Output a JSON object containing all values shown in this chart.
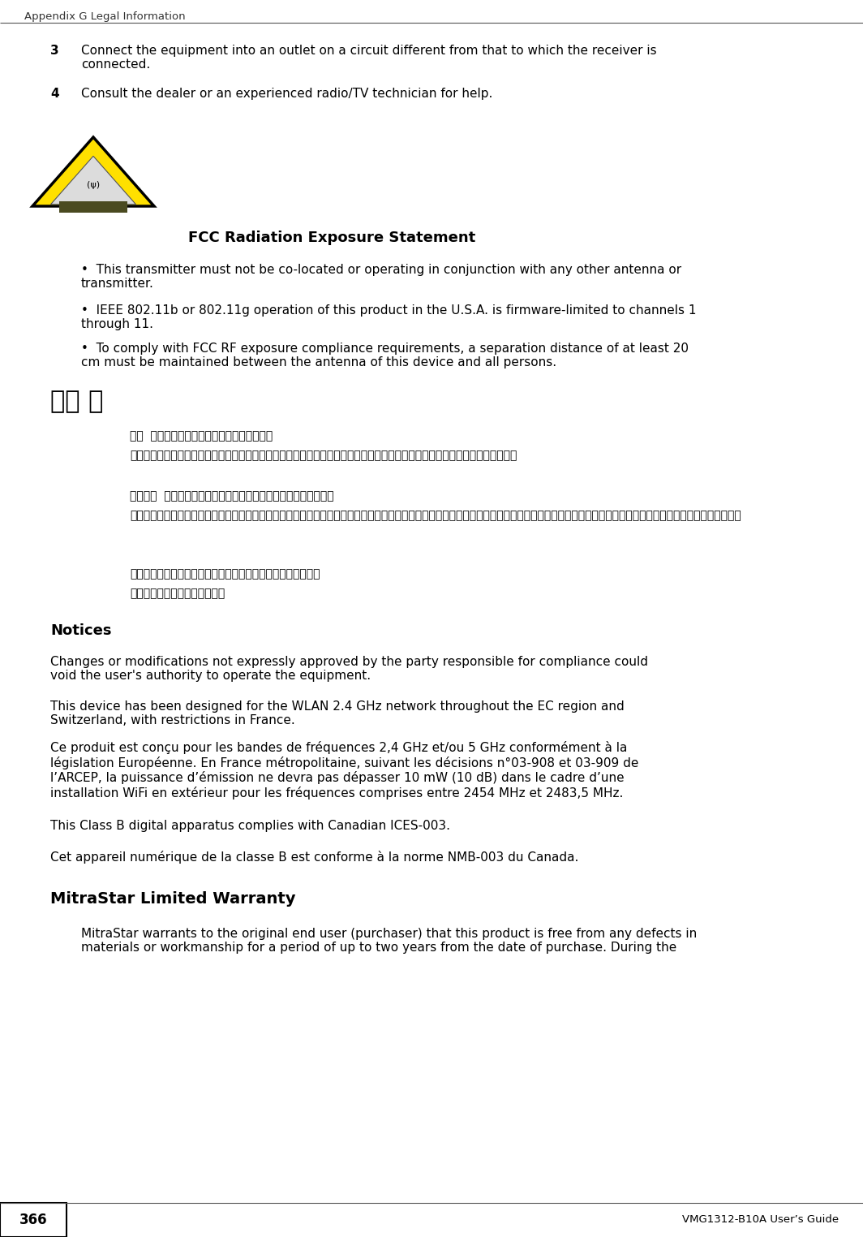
{
  "bg_color": "#ffffff",
  "header_text": "Appendix G Legal Information",
  "footer_page": "366",
  "footer_right": "VMG1312-B10A User’s Guide",
  "item3_label": "3",
  "item3_text": "Connect the equipment into an outlet on a circuit different from that to which the receiver is\nconnected.",
  "item4_label": "4",
  "item4_text": "Consult the dealer or an experienced radio/TV technician for help.",
  "fcc_title": "FCC Radiation Exposure Statement",
  "bullet1": "This transmitter must not be co-located or operating in conjunction with any other antenna or\ntransmitter.",
  "bullet2": "IEEE 802.11b or 802.11g operation of this product in the U.S.A. is firmware-limited to channels 1\nthrough 11.",
  "bullet3": "To comply with FCC RF exposure compliance requirements, a separation distance of at least 20\ncm must be maintained between the antenna of this device and all persons.",
  "chinese_title": "注意 ！",
  "chinese_para1_label": "依據  低功率電波輺射性電機管理辦法第十二條",
  "chinese_para1_text": "經型式認證合格之低功率射頻電機，非經許可，公司、商號或使用者均不得擅自變更頻率、加大功率或變更原設計之特性及功能。",
  "chinese_para2_label": "第十四條  低功率射頻電機之使用不得影響飛航安全及干擾合法通信",
  "chinese_para2_text": "；經發現有干擾現象時，應立即停用，並改善至無干擾時方得繼續使用。前項合法通信，指依電信規定作業之無線電信。低功率射頻電機須忍受合法通信或工業、科學及醫療用電波輺射性電機設備之干擾。",
  "chinese_para3": "本機限在不干擾合法電臺與不受被干擾保障條件下於室內使用。",
  "chinese_para4": "減少電磁波影響，請妥適使用。",
  "notices_title": "Notices",
  "notices_p1": "Changes or modifications not expressly approved by the party responsible for compliance could\nvoid the user's authority to operate the equipment.",
  "notices_p2": "This device has been designed for the WLAN 2.4 GHz network throughout the EC region and\nSwitzerland, with restrictions in France.",
  "notices_p3": "Ce produit est conçu pour les bandes de fréquences 2,4 GHz et/ou 5 GHz conformément à la\nlégislation Européenne. En France métropolitaine, suivant les décisions n°03-908 et 03-909 de\nl’ARCEP, la puissance d’émission ne devra pas dépasser 10 mW (10 dB) dans le cadre d’une\ninstallation WiFi en extérieur pour les fréquences comprises entre 2454 MHz et 2483,5 MHz.",
  "notices_p4": "This Class B digital apparatus complies with Canadian ICES-003.",
  "notices_p5": "Cet appareil numérique de la classe B est conforme à la norme NMB-003 du Canada.",
  "warranty_title": "MitraStar Limited Warranty",
  "warranty_p1": "MitraStar warrants to the original end user (purchaser) that this product is free from any defects in\nmaterials or workmanship for a period of up to two years from the date of purchase. During the"
}
